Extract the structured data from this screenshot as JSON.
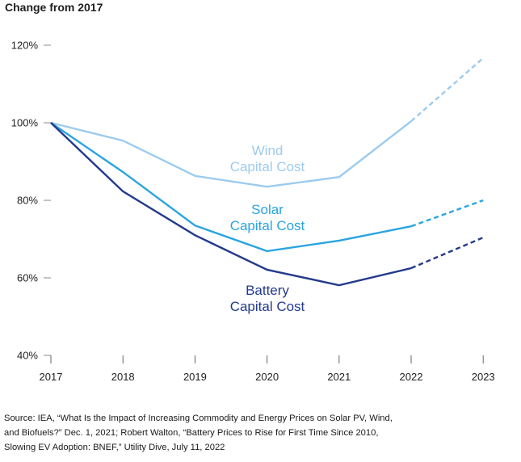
{
  "chart_data": {
    "type": "line",
    "title": "Change from 2017",
    "xlabel": "",
    "ylabel": "",
    "x": [
      "2017",
      "2018",
      "2019",
      "2020",
      "2021",
      "2022",
      "2023"
    ],
    "ylim": [
      40,
      120
    ],
    "yticks": [
      120,
      100,
      80,
      60,
      40
    ],
    "ytick_labels": [
      "120%",
      "100%",
      "80%",
      "60%",
      "40%"
    ],
    "grid": false,
    "legend": "inline labels",
    "projection_from_index": 5,
    "projection_style": "dashed",
    "series": [
      {
        "name": "Wind Capital Cost",
        "label_lines": [
          "Wind",
          "Capital Cost"
        ],
        "color": "#9ccbee",
        "values": [
          100,
          95.4,
          86.3,
          83.5,
          86.0,
          100.4,
          116.7
        ]
      },
      {
        "name": "Solar Capital Cost",
        "label_lines": [
          "Solar",
          "Capital Cost"
        ],
        "color": "#2aa4e0",
        "values": [
          100,
          87.3,
          73.5,
          66.9,
          69.6,
          73.3,
          80.0
        ]
      },
      {
        "name": "Battery Capital Cost",
        "label_lines": [
          "Battery",
          "Capital Cost"
        ],
        "color": "#233a8c",
        "values": [
          100,
          82.3,
          71.0,
          62.1,
          58.1,
          62.5,
          70.4
        ]
      }
    ]
  },
  "source": "Source: IEA, “What Is the Impact of Increasing Commodity and Energy Prices on Solar PV, Wind, and Biofuels?” Dec. 1, 2021; Robert Walton, “Battery Prices to Rise for First Time Since 2010, Slowing EV Adoption: BNEF,” Utility Dive, July 11, 2022"
}
